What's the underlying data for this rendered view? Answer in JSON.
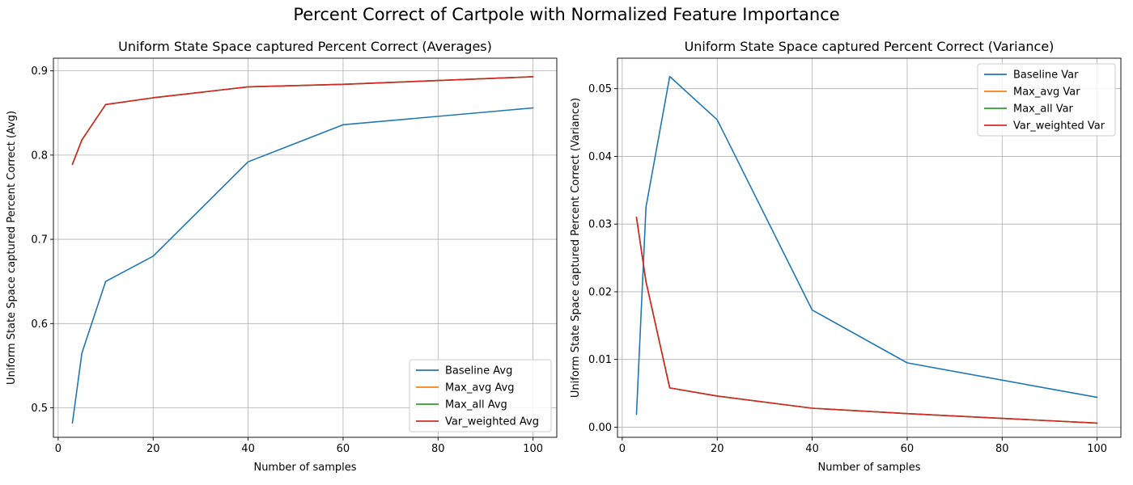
{
  "figure": {
    "title": "Percent Correct of Cartpole with Normalized Feature Importance"
  },
  "chart_data": [
    {
      "type": "line",
      "title": "Uniform State Space captured Percent Correct (Averages)",
      "xlabel": "Number of samples",
      "ylabel": "Uniform State Space captured Percent Correct (Avg)",
      "x": [
        3,
        5,
        10,
        20,
        40,
        60,
        100
      ],
      "xlim": [
        -1,
        105
      ],
      "ylim": [
        0.465,
        0.915
      ],
      "xticks": [
        0,
        20,
        40,
        60,
        80,
        100
      ],
      "xtick_labels": [
        "0",
        "20",
        "40",
        "60",
        "80",
        "100"
      ],
      "yticks": [
        0.5,
        0.6,
        0.7,
        0.8,
        0.9
      ],
      "ytick_labels": [
        "0.5",
        "0.6",
        "0.7",
        "0.8",
        "0.9"
      ],
      "grid": true,
      "legend_position": "lower-right",
      "series": [
        {
          "name": "Baseline Avg",
          "color": "#1f77b4",
          "values": [
            0.482,
            0.565,
            0.65,
            0.68,
            0.792,
            0.836,
            0.856
          ]
        },
        {
          "name": "Max_avg Avg",
          "color": "#ff7f0e",
          "values": [
            0.789,
            0.818,
            0.86,
            0.868,
            0.881,
            0.884,
            0.893
          ]
        },
        {
          "name": "Max_all Avg",
          "color": "#2ca02c",
          "values": [
            0.789,
            0.818,
            0.86,
            0.868,
            0.881,
            0.884,
            0.893
          ]
        },
        {
          "name": "Var_weighted Avg",
          "color": "#d62728",
          "values": [
            0.789,
            0.818,
            0.86,
            0.868,
            0.881,
            0.884,
            0.893
          ]
        }
      ]
    },
    {
      "type": "line",
      "title": "Uniform State Space captured Percent Correct (Variance)",
      "xlabel": "Number of samples",
      "ylabel": "Uniform State Space captured Percent Correct (Variance)",
      "x": [
        3,
        5,
        10,
        20,
        40,
        60,
        100
      ],
      "xlim": [
        -1,
        105
      ],
      "ylim": [
        -0.0015,
        0.0545
      ],
      "xticks": [
        0,
        20,
        40,
        60,
        80,
        100
      ],
      "xtick_labels": [
        "0",
        "20",
        "40",
        "60",
        "80",
        "100"
      ],
      "yticks": [
        0.0,
        0.01,
        0.02,
        0.03,
        0.04,
        0.05
      ],
      "ytick_labels": [
        "0.00",
        "0.01",
        "0.02",
        "0.03",
        "0.04",
        "0.05"
      ],
      "grid": true,
      "legend_position": "upper-right",
      "series": [
        {
          "name": "Baseline Var",
          "color": "#1f77b4",
          "values": [
            0.0019,
            0.0325,
            0.0518,
            0.0454,
            0.0173,
            0.0095,
            0.0044
          ]
        },
        {
          "name": "Max_avg Var",
          "color": "#ff7f0e",
          "values": [
            0.031,
            0.0215,
            0.0058,
            0.0046,
            0.0028,
            0.002,
            0.0006
          ]
        },
        {
          "name": "Max_all Var",
          "color": "#2ca02c",
          "values": [
            0.031,
            0.0215,
            0.0058,
            0.0046,
            0.0028,
            0.002,
            0.0006
          ]
        },
        {
          "name": "Var_weighted Var",
          "color": "#d62728",
          "values": [
            0.031,
            0.0215,
            0.0058,
            0.0046,
            0.0028,
            0.002,
            0.0006
          ]
        }
      ]
    }
  ]
}
